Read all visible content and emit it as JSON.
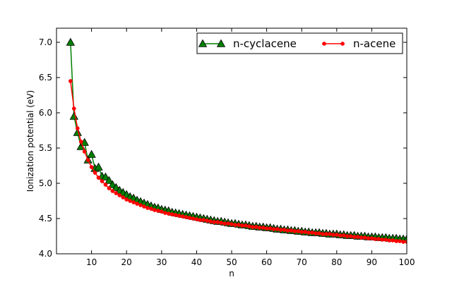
{
  "chart_data": {
    "type": "line",
    "xlabel": "n",
    "ylabel": "Ionization potential (eV)",
    "xlim": [
      0,
      100
    ],
    "ylim": [
      4.0,
      7.2
    ],
    "xticks": [
      10,
      20,
      30,
      40,
      50,
      60,
      70,
      80,
      90,
      100
    ],
    "yticks": [
      4.0,
      4.5,
      5.0,
      5.5,
      6.0,
      6.5,
      7.0
    ],
    "grid": false,
    "legend": "top-right",
    "series": [
      {
        "name": "n-cyclacene",
        "color": "#008000",
        "marker": "triangle",
        "x": [
          4,
          5,
          6,
          7,
          8,
          9,
          10,
          11,
          12,
          13,
          14,
          15,
          16,
          17,
          18,
          19,
          20,
          21,
          22,
          23,
          24,
          25,
          26,
          27,
          28,
          29,
          30,
          31,
          32,
          33,
          34,
          35,
          36,
          37,
          38,
          39,
          40,
          41,
          42,
          43,
          44,
          45,
          46,
          47,
          48,
          49,
          50,
          51,
          52,
          53,
          54,
          55,
          56,
          57,
          58,
          59,
          60,
          61,
          62,
          63,
          64,
          65,
          66,
          67,
          68,
          69,
          70,
          71,
          72,
          73,
          74,
          75,
          76,
          77,
          78,
          79,
          80,
          81,
          82,
          83,
          84,
          85,
          86,
          87,
          88,
          89,
          90,
          91,
          92,
          93,
          94,
          95,
          96,
          97,
          98,
          99,
          100
        ],
        "y": [
          7.0,
          5.95,
          5.72,
          5.52,
          5.58,
          5.33,
          5.41,
          5.21,
          5.23,
          5.1,
          5.09,
          5.04,
          4.98,
          4.94,
          4.9,
          4.87,
          4.84,
          4.81,
          4.79,
          4.76,
          4.74,
          4.72,
          4.7,
          4.68,
          4.66,
          4.65,
          4.63,
          4.62,
          4.61,
          4.59,
          4.58,
          4.57,
          4.56,
          4.55,
          4.54,
          4.53,
          4.52,
          4.51,
          4.5,
          4.49,
          4.48,
          4.47,
          4.46,
          4.46,
          4.45,
          4.44,
          4.43,
          4.43,
          4.42,
          4.41,
          4.41,
          4.4,
          4.39,
          4.39,
          4.38,
          4.38,
          4.37,
          4.37,
          4.36,
          4.35,
          4.35,
          4.34,
          4.34,
          4.33,
          4.33,
          4.32,
          4.32,
          4.31,
          4.31,
          4.3,
          4.3,
          4.3,
          4.29,
          4.29,
          4.28,
          4.28,
          4.28,
          4.27,
          4.27,
          4.26,
          4.26,
          4.26,
          4.25,
          4.25,
          4.25,
          4.24,
          4.24,
          4.24,
          4.23,
          4.23,
          4.23,
          4.22,
          4.22,
          4.22,
          4.21,
          4.21,
          4.21
        ]
      },
      {
        "name": "n-acene",
        "color": "#ff0000",
        "marker": "circle",
        "x": [
          4,
          5,
          6,
          7,
          8,
          9,
          10,
          11,
          12,
          13,
          14,
          15,
          16,
          17,
          18,
          19,
          20,
          21,
          22,
          23,
          24,
          25,
          26,
          27,
          28,
          29,
          30,
          31,
          32,
          33,
          34,
          35,
          36,
          37,
          38,
          39,
          40,
          41,
          42,
          43,
          44,
          45,
          46,
          47,
          48,
          49,
          50,
          51,
          52,
          53,
          54,
          55,
          56,
          57,
          58,
          59,
          60,
          61,
          62,
          63,
          64,
          65,
          66,
          67,
          68,
          69,
          70,
          71,
          72,
          73,
          74,
          75,
          76,
          77,
          78,
          79,
          80,
          81,
          82,
          83,
          84,
          85,
          86,
          87,
          88,
          89,
          90,
          91,
          92,
          93,
          94,
          95,
          96,
          97,
          98,
          99,
          100
        ],
        "y": [
          6.45,
          6.06,
          5.78,
          5.59,
          5.45,
          5.33,
          5.23,
          5.15,
          5.08,
          5.03,
          4.98,
          4.93,
          4.89,
          4.86,
          4.83,
          4.8,
          4.77,
          4.75,
          4.73,
          4.71,
          4.69,
          4.67,
          4.65,
          4.64,
          4.62,
          4.61,
          4.6,
          4.58,
          4.57,
          4.56,
          4.55,
          4.54,
          4.53,
          4.52,
          4.51,
          4.5,
          4.49,
          4.48,
          4.48,
          4.47,
          4.46,
          4.45,
          4.45,
          4.44,
          4.43,
          4.43,
          4.42,
          4.41,
          4.41,
          4.4,
          4.4,
          4.39,
          4.38,
          4.38,
          4.37,
          4.37,
          4.36,
          4.36,
          4.35,
          4.35,
          4.34,
          4.34,
          4.33,
          4.33,
          4.32,
          4.32,
          4.31,
          4.31,
          4.3,
          4.3,
          4.29,
          4.29,
          4.28,
          4.28,
          4.28,
          4.27,
          4.27,
          4.26,
          4.26,
          4.25,
          4.25,
          4.24,
          4.24,
          4.23,
          4.23,
          4.22,
          4.22,
          4.21,
          4.21,
          4.2,
          4.2,
          4.19,
          4.19,
          4.18,
          4.18,
          4.17,
          4.17
        ]
      }
    ]
  }
}
